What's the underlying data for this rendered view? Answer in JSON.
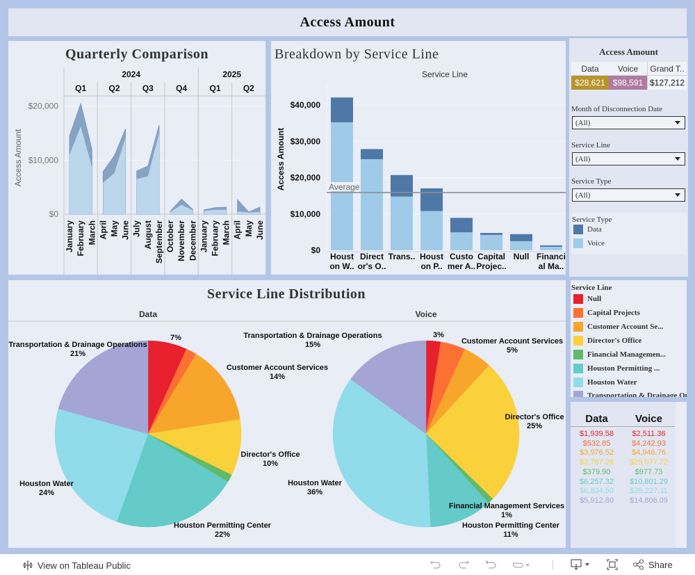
{
  "dashboard": {
    "title": "Access Amount"
  },
  "colors": {
    "data": "#4e79a7",
    "voice": "#a0cbe8",
    "kpi_data": "#b8942a",
    "kpi_voice": "#b07aa1",
    "panel_bg": "#e9edf6",
    "border": "#b4c6e7"
  },
  "service_lines": [
    {
      "name": "Null",
      "legend": "Null",
      "short": [
        "Null",
        ""
      ],
      "color": "#e8202d",
      "data": 1939.58,
      "voice": 2511.36,
      "data_str": "$1,939.58",
      "voice_str": "$2,511.36"
    },
    {
      "name": "Capital Projects",
      "legend": "Capital Projects",
      "short": [
        "Capital",
        "Projec.."
      ],
      "color": "#fd7034",
      "data": 532.85,
      "voice": 4242.93,
      "data_str": "$532.85",
      "voice_str": "$4,242.93"
    },
    {
      "name": "Customer Account Services",
      "legend": "Customer Account Se...",
      "short": [
        "Custo",
        "mer A.."
      ],
      "color": "#f8a52c",
      "data": 3976.52,
      "voice": 4946.76,
      "data_str": "$3,976.52",
      "voice_str": "$4,946.76"
    },
    {
      "name": "Director's Office",
      "legend": "Director's Office",
      "short": [
        "Direct",
        "or's O.."
      ],
      "color": "#fad13b",
      "data": 2787.28,
      "voice": 25077.72,
      "data_str": "$2,787.28",
      "voice_str": "$25,077.72"
    },
    {
      "name": "Financial Management Services",
      "legend": "Financial Managemen...",
      "short": [
        "Financi",
        "al Ma.."
      ],
      "color": "#5fba6a",
      "data": 379.9,
      "voice": 977.73,
      "data_str": "$379.90",
      "voice_str": "$977.73"
    },
    {
      "name": "Houston Permitting Center",
      "legend": "Houston Permitting ...",
      "short": [
        "Houst",
        "on P.."
      ],
      "color": "#64cbc8",
      "data": 6257.32,
      "voice": 10801.29,
      "data_str": "$6,257.32",
      "voice_str": "$10,801.29"
    },
    {
      "name": "Houston Water",
      "legend": "Houston Water",
      "short": [
        "Houst",
        "on W.."
      ],
      "color": "#90dcea",
      "data": 6834.5,
      "voice": 35227.11,
      "data_str": "$6,834.50",
      "voice_str": "$35,227.11"
    },
    {
      "name": "Transportation & Drainage Operations",
      "legend": "Transportation & Drainage Operations",
      "short": [
        "Trans..",
        ""
      ],
      "color": "#a4a4d5",
      "data": 5912.8,
      "voice": 14806.09,
      "data_str": "$5,912.80",
      "voice_str": "$14,806.09"
    }
  ],
  "side": {
    "kpi_title": "Access Amount",
    "kpi_headers": [
      "Data",
      "Voice",
      "Grand T.."
    ],
    "kpi_values": [
      "$28,621",
      "$98,591",
      "$127,212"
    ],
    "filters": [
      {
        "label": "Month of Disconnection Date",
        "value": "(All)"
      },
      {
        "label": "Service Line",
        "value": "(All)"
      },
      {
        "label": "Service Type",
        "value": "(All)"
      }
    ],
    "service_type_legend": {
      "title": "Service Type",
      "items": [
        "Data",
        "Voice"
      ]
    }
  },
  "service_line_legend": {
    "title": "Service Line"
  },
  "value_table": {
    "headers": [
      "Data",
      "Voice"
    ]
  },
  "footer": {
    "view_on": "View on Tableau Public",
    "share": "Share"
  },
  "chart_data": [
    {
      "type": "area",
      "title": "Quarterly Comparison",
      "ylabel": "Access Amount",
      "yticks": [
        "$0",
        "$10,000",
        "$20,000"
      ],
      "ylim": [
        0,
        21500
      ],
      "stacked": true,
      "years": [
        {
          "year": "2024",
          "quarters": [
            "Q1",
            "Q2",
            "Q3",
            "Q4"
          ]
        },
        {
          "year": "2025",
          "quarters": [
            "Q1",
            "Q2"
          ]
        }
      ],
      "groups": [
        {
          "quarter": "Q1",
          "months": [
            "January",
            "February",
            "March"
          ],
          "voice": [
            11000,
            16200,
            8700
          ],
          "data": [
            3500,
            4300,
            3300
          ]
        },
        {
          "quarter": "Q2",
          "months": [
            "April",
            "May",
            "June"
          ],
          "voice": [
            5800,
            7600,
            14200
          ],
          "data": [
            2100,
            3200,
            1600
          ]
        },
        {
          "quarter": "Q3",
          "months": [
            "July",
            "August",
            "September"
          ],
          "voice": [
            6500,
            7000,
            15000
          ],
          "data": [
            1500,
            1900,
            1500
          ]
        },
        {
          "quarter": "Q4",
          "months": [
            "October",
            "November",
            "December"
          ],
          "voice": [
            400,
            1700,
            700
          ],
          "data": [
            150,
            1100,
            200
          ]
        },
        {
          "quarter": "Q1",
          "months": [
            "January",
            "February",
            "March"
          ],
          "voice": [
            600,
            800,
            800
          ],
          "data": [
            200,
            400,
            500
          ]
        },
        {
          "quarter": "Q2",
          "months": [
            "April",
            "May",
            "June"
          ],
          "voice": [
            500,
            300,
            400
          ],
          "data": [
            2200,
            100,
            900
          ]
        }
      ],
      "series_order": [
        "Voice",
        "Data"
      ]
    },
    {
      "type": "bar",
      "title": "Breakdown by Service Line",
      "subtitle": "Service Line",
      "ylabel": "Access Amount",
      "yticks": [
        "$0",
        "$10,000",
        "$20,000",
        "$30,000",
        "$40,000"
      ],
      "ylim": [
        0,
        42500
      ],
      "stacked": true,
      "order": [
        6,
        3,
        7,
        5,
        2,
        1,
        0,
        4
      ],
      "reference_line": {
        "label": "Average",
        "value": 15902
      },
      "series": [
        "Voice",
        "Data"
      ]
    },
    {
      "type": "pie",
      "title": "Service Line Distribution",
      "pies": [
        {
          "name": "Data",
          "labels": [
            {
              "index": 0,
              "text": "",
              "pct": "7%"
            },
            {
              "index": 2,
              "text": "Customer Account Services",
              "pct": "14%"
            },
            {
              "index": 3,
              "text": "Director's Office",
              "pct": "10%"
            },
            {
              "index": 5,
              "text": "Houston Permitting Center",
              "pct": "22%"
            },
            {
              "index": 6,
              "text": "Houston Water",
              "pct": "24%"
            },
            {
              "index": 7,
              "text": "Transportation & Drainage Operations",
              "pct": "21%"
            }
          ]
        },
        {
          "name": "Voice",
          "labels": [
            {
              "index": 0,
              "text": "",
              "pct": "3%"
            },
            {
              "index": 2,
              "text": "Customer Account Services",
              "pct": "5%"
            },
            {
              "index": 3,
              "text": "Director's Office",
              "pct": "25%"
            },
            {
              "index": 4,
              "text": "Financial Management Services",
              "pct": "1%"
            },
            {
              "index": 5,
              "text": "Houston Permitting Center",
              "pct": "11%"
            },
            {
              "index": 6,
              "text": "Houston Water",
              "pct": "36%"
            },
            {
              "index": 7,
              "text": "Transportation & Drainage Operations",
              "pct": "15%"
            }
          ]
        }
      ]
    }
  ]
}
